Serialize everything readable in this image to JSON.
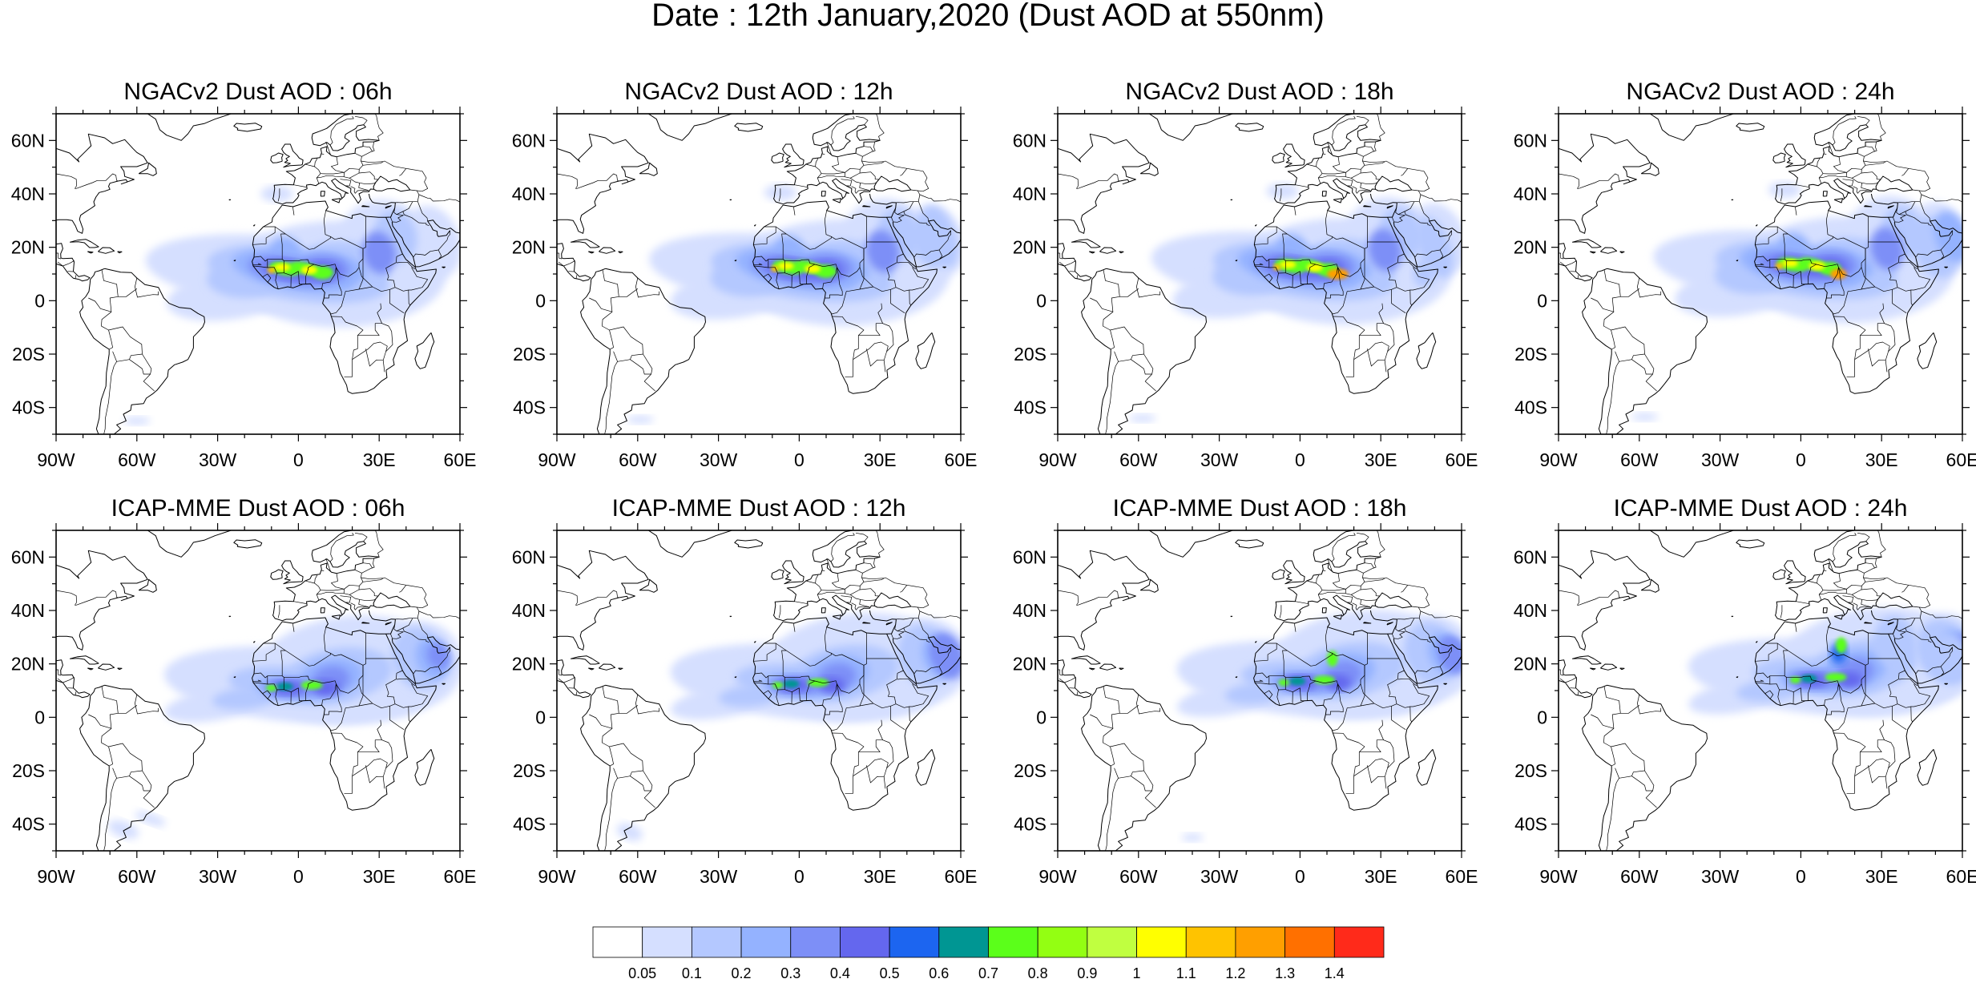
{
  "page_title": "Date : 12th January,2020 (Dust AOD at 550nm)",
  "lon_ticks": [
    "90W",
    "60W",
    "30W",
    "0",
    "30E",
    "60E"
  ],
  "lat_ticks": [
    "60N",
    "40N",
    "20N",
    "0",
    "20S",
    "40S"
  ],
  "panels": [
    {
      "title": "NGACv2 Dust AOD : 06h",
      "model": "ngac",
      "hour": 6
    },
    {
      "title": "NGACv2 Dust AOD : 12h",
      "model": "ngac",
      "hour": 12
    },
    {
      "title": "NGACv2 Dust AOD : 18h",
      "model": "ngac",
      "hour": 18
    },
    {
      "title": "NGACv2 Dust AOD : 24h",
      "model": "ngac",
      "hour": 24
    },
    {
      "title": "ICAP-MME Dust AOD : 06h",
      "model": "icap",
      "hour": 6
    },
    {
      "title": "ICAP-MME Dust AOD : 12h",
      "model": "icap",
      "hour": 12
    },
    {
      "title": "ICAP-MME Dust AOD : 18h",
      "model": "icap",
      "hour": 18
    },
    {
      "title": "ICAP-MME Dust AOD : 24h",
      "model": "icap",
      "hour": 24
    }
  ],
  "colorbar": {
    "colors": [
      "#ffffff",
      "#d5dfff",
      "#b4c8ff",
      "#94b2ff",
      "#7d8ff7",
      "#6467ee",
      "#1c65f0",
      "#009693",
      "#5bff1a",
      "#93ff12",
      "#c0ff40",
      "#ffff00",
      "#ffc300",
      "#ff9f00",
      "#ff7000",
      "#ff2a1a"
    ],
    "labels": [
      "0.05",
      "0.1",
      "0.2",
      "0.3",
      "0.4",
      "0.5",
      "0.6",
      "0.7",
      "0.8",
      "0.9",
      "1",
      "1.1",
      "1.2",
      "1.3",
      "1.4"
    ]
  }
}
